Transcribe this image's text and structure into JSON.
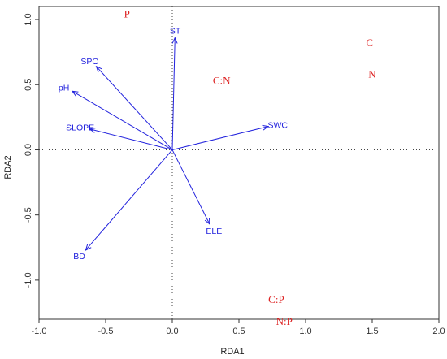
{
  "chart_data": {
    "type": "scatter",
    "subtype": "rda-biplot",
    "title": "",
    "xlabel": "RDA1",
    "ylabel": "RDA2",
    "xlim": [
      -1.0,
      2.0
    ],
    "ylim": [
      -1.3,
      1.1
    ],
    "x_ticks": [
      "-1.0",
      "-0.5",
      "0.0",
      "0.5",
      "1.0",
      "1.5",
      "2.0"
    ],
    "x_tick_values": [
      -1.0,
      -0.5,
      0.0,
      0.5,
      1.0,
      1.5,
      2.0
    ],
    "y_ticks": [
      "-1.0",
      "-0.5",
      "0.0",
      "0.5",
      "1.0"
    ],
    "y_tick_values": [
      -1.0,
      -0.5,
      0.0,
      0.5,
      1.0
    ],
    "reference_lines": {
      "x": 0,
      "y": 0,
      "style": "dotted"
    },
    "grid": false,
    "environment_vectors": {
      "color": "#2222dd",
      "items": [
        {
          "label": "ST",
          "x": 0.02,
          "y": 0.86
        },
        {
          "label": "SPO",
          "x": -0.57,
          "y": 0.64
        },
        {
          "label": "pH",
          "x": -0.75,
          "y": 0.45
        },
        {
          "label": "SLOPE",
          "x": -0.62,
          "y": 0.16
        },
        {
          "label": "SWC",
          "x": 0.72,
          "y": 0.18
        },
        {
          "label": "ELE",
          "x": 0.28,
          "y": -0.57
        },
        {
          "label": "BD",
          "x": -0.65,
          "y": -0.77
        }
      ]
    },
    "response_variables": {
      "color": "#dd2222",
      "items": [
        {
          "label": "P",
          "x": -0.34,
          "y": 1.04
        },
        {
          "label": "C",
          "x": 1.48,
          "y": 0.82
        },
        {
          "label": "N",
          "x": 1.5,
          "y": 0.58
        },
        {
          "label": "C:N",
          "x": 0.37,
          "y": 0.53
        },
        {
          "label": "C:P",
          "x": 0.78,
          "y": -1.15
        },
        {
          "label": "N:P",
          "x": 0.84,
          "y": -1.32
        }
      ]
    }
  }
}
